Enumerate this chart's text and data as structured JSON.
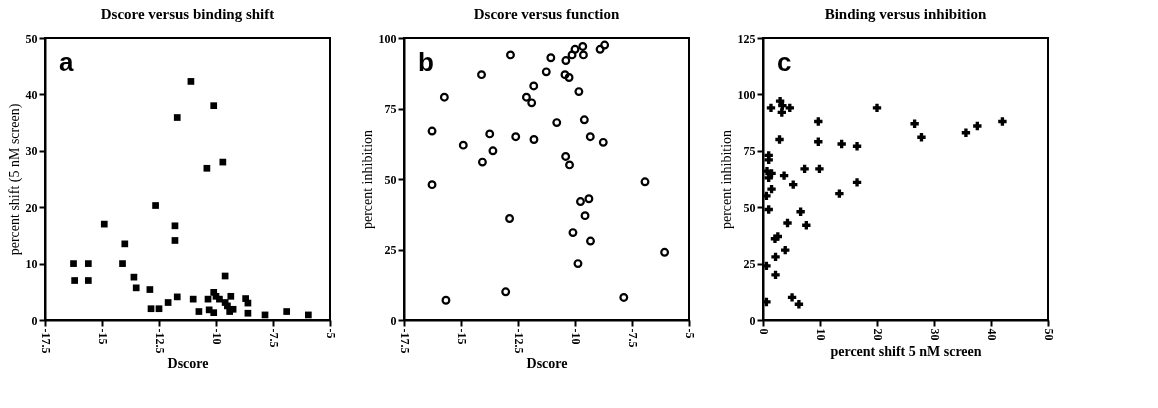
{
  "chart_data": [
    {
      "type": "scatter",
      "title": "Dscore versus binding shift",
      "xlabel": "Dscore",
      "ylabel": "percent shift (5 nM screen)",
      "annotations": [
        "a"
      ],
      "marker": "square",
      "grid": false,
      "xlim": [
        -17.5,
        -5
      ],
      "xticks": [
        -17.5,
        -15,
        -12.5,
        -10,
        -7.5,
        -5
      ],
      "ylim": [
        0,
        50
      ],
      "yticks": [
        0,
        10,
        20,
        30,
        40,
        50
      ],
      "series": [
        {
          "color": "#000000",
          "x": [
            -16.25,
            -16.2,
            -15.6,
            -15.6,
            -14.9,
            -14.0,
            -14.1,
            -13.6,
            -13.5,
            -12.9,
            -12.85,
            -12.5,
            -12.65,
            -12.1,
            -11.7,
            -11.8,
            -11.8,
            -11.7,
            -11.1,
            -11.0,
            -10.75,
            -10.35,
            -10.3,
            -10.1,
            -10.4,
            -9.7,
            -10.1,
            -10.0,
            -9.85,
            -9.6,
            -9.6,
            -9.5,
            -9.35,
            -9.25,
            -9.4,
            -10.1,
            -8.7,
            -8.6,
            -8.6,
            -7.85,
            -6.9,
            -5.95
          ],
          "values": [
            10,
            7,
            10,
            7,
            17,
            13.5,
            10,
            7.6,
            5.7,
            5.4,
            2,
            2,
            20.3,
            3.1,
            4.1,
            14.1,
            16.7,
            35.9,
            42.3,
            3.7,
            1.5,
            3.7,
            1.8,
            38,
            26.9,
            28,
            4.9,
            4.2,
            3.7,
            7.8,
            3.1,
            2.5,
            4.2,
            1.9,
            1.5,
            1.3,
            3.8,
            3.0,
            1.2,
            0.9,
            1.5,
            0.9
          ]
        }
      ]
    },
    {
      "type": "scatter",
      "title": "Dscore versus function",
      "xlabel": "Dscore",
      "ylabel": "percent inhibition",
      "annotations": [
        "b"
      ],
      "marker": "circle",
      "grid": false,
      "xlim": [
        -17.5,
        -5
      ],
      "xticks": [
        -17.5,
        -15,
        -12.5,
        -10,
        -7.5,
        -5
      ],
      "ylim": [
        0,
        100
      ],
      "yticks": [
        0,
        25,
        50,
        75,
        100
      ],
      "series": [
        {
          "color": "#000000",
          "x": [
            -16.27,
            -16.27,
            -15.73,
            -15.66,
            -14.9,
            -14.1,
            -14.06,
            -13.74,
            -13.6,
            -13.04,
            -12.87,
            -12.83,
            -12.6,
            -12.13,
            -11.9,
            -11.81,
            -11.8,
            -11.26,
            -11.06,
            -10.8,
            -10.44,
            -10.4,
            -10.26,
            -10.41,
            -10.24,
            -10.13,
            -10.0,
            -10.09,
            -9.87,
            -9.83,
            -9.76,
            -9.66,
            -9.63,
            -9.59,
            -9.56,
            -9.39,
            -9.33,
            -9.32,
            -8.9,
            -8.76,
            -8.7,
            -7.86,
            -6.93,
            -6.07
          ],
          "values": [
            48,
            67,
            79,
            7,
            62,
            87,
            56,
            66,
            60,
            10,
            36,
            94,
            65,
            79,
            77,
            83,
            64,
            88,
            93,
            70,
            87,
            92,
            86,
            58,
            55,
            94,
            96,
            31,
            20,
            81,
            42,
            97,
            94,
            71,
            37,
            43,
            65,
            28,
            96,
            63,
            97.5,
            8,
            49,
            24
          ]
        }
      ]
    },
    {
      "type": "scatter",
      "title": "Binding versus inhibition",
      "xlabel": "percent shift 5 nM screen",
      "ylabel": "percent inhibition",
      "annotations": [
        "c"
      ],
      "marker": "cross",
      "grid": false,
      "xlim": [
        0,
        50
      ],
      "xticks": [
        0,
        10,
        20,
        30,
        40,
        50
      ],
      "ylim": [
        0,
        125
      ],
      "yticks": [
        0,
        25,
        50,
        75,
        100,
        125
      ],
      "series": [
        {
          "color": "#000000",
          "x": [
            0.6,
            0.6,
            1.0,
            1.0,
            0.7,
            0.6,
            1.0,
            1.0,
            1.5,
            1.5,
            1.4,
            2.1,
            2.6,
            2.2,
            2.2,
            2.9,
            3.0,
            3.4,
            3.3,
            3.7,
            3.9,
            4.3,
            4.7,
            5.1,
            5.3,
            6.3,
            6.6,
            7.3,
            7.6,
            9.7,
            9.7,
            9.9,
            13.4,
            13.8,
            16.5,
            16.5,
            20.0,
            26.6,
            27.8,
            35.6,
            37.6,
            42.0
          ],
          "values": [
            8,
            24,
            71,
            73,
            66,
            55,
            49,
            63,
            65,
            58,
            94,
            36,
            37,
            28,
            20,
            80,
            97,
            95,
            92,
            64,
            31,
            43,
            94,
            10,
            60,
            7,
            48,
            67,
            42,
            88,
            79,
            67,
            56,
            78,
            77,
            61,
            94,
            87,
            81,
            83,
            86,
            88
          ]
        }
      ]
    }
  ]
}
